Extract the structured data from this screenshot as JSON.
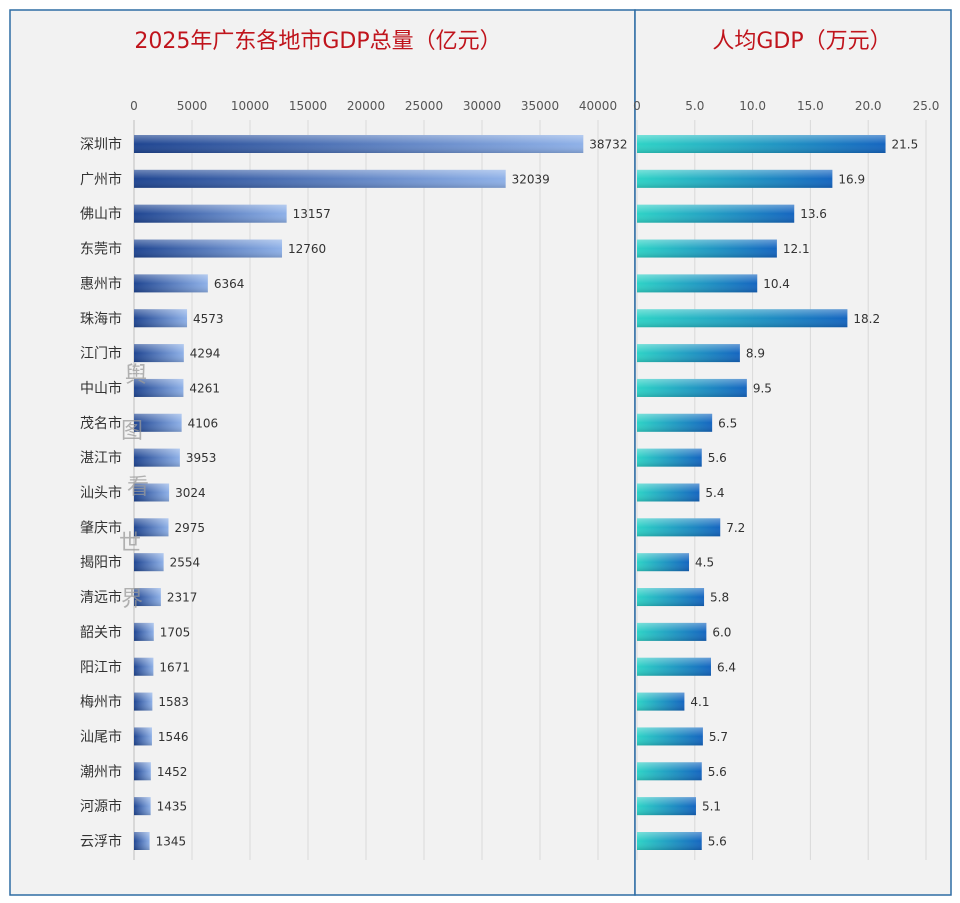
{
  "chart_data": [
    {
      "type": "bar",
      "orientation": "horizontal",
      "title": "2025年广东各地市GDP总量（亿元）",
      "categories": [
        "深圳市",
        "广州市",
        "佛山市",
        "东莞市",
        "惠州市",
        "珠海市",
        "江门市",
        "中山市",
        "茂名市",
        "湛江市",
        "汕头市",
        "肇庆市",
        "揭阳市",
        "清远市",
        "韶关市",
        "阳江市",
        "梅州市",
        "汕尾市",
        "潮州市",
        "河源市",
        "云浮市"
      ],
      "values": [
        38732,
        32039,
        13157,
        12760,
        6364,
        4573,
        4294,
        4261,
        4106,
        3953,
        3024,
        2975,
        2554,
        2317,
        1705,
        1671,
        1583,
        1546,
        1452,
        1435,
        1345
      ],
      "xlim": [
        0,
        40000
      ],
      "ticks": [
        "0",
        "5000",
        "10000",
        "15000",
        "20000",
        "25000",
        "30000",
        "35000",
        "40000"
      ],
      "tick_values": [
        0,
        5000,
        10000,
        15000,
        20000,
        25000,
        30000,
        35000,
        40000
      ],
      "value_labels": [
        "38732",
        "32039",
        "13157",
        "12760",
        "6364",
        "4573",
        "4294",
        "4261",
        "4106",
        "3953",
        "3024",
        "2975",
        "2554",
        "2317",
        "1705",
        "1671",
        "1583",
        "1546",
        "1452",
        "1435",
        "1345"
      ],
      "grid": true,
      "colors": {
        "bar_dark": "#1f4591",
        "bar_light": "#8fb1e8"
      }
    },
    {
      "type": "bar",
      "orientation": "horizontal",
      "title": "人均GDP（万元）",
      "categories": [
        "深圳市",
        "广州市",
        "佛山市",
        "东莞市",
        "惠州市",
        "珠海市",
        "江门市",
        "中山市",
        "茂名市",
        "湛江市",
        "汕头市",
        "肇庆市",
        "揭阳市",
        "清远市",
        "韶关市",
        "阳江市",
        "梅州市",
        "汕尾市",
        "潮州市",
        "河源市",
        "云浮市"
      ],
      "values": [
        21.5,
        16.9,
        13.6,
        12.1,
        10.4,
        18.2,
        8.9,
        9.5,
        6.5,
        5.6,
        5.4,
        7.2,
        4.5,
        5.8,
        6.0,
        6.4,
        4.1,
        5.7,
        5.6,
        5.1,
        5.6
      ],
      "xlim": [
        0,
        25
      ],
      "ticks": [
        "0",
        "5.0",
        "10.0",
        "15.0",
        "20.0",
        "25.0"
      ],
      "tick_values": [
        0,
        5,
        10,
        15,
        20,
        25
      ],
      "value_labels": [
        "21.5",
        "16.9",
        "13.6",
        "12.1",
        "10.4",
        "18.2",
        "8.9",
        "9.5",
        "6.5",
        "5.6",
        "5.4",
        "7.2",
        "4.5",
        "5.8",
        "6.0",
        "6.4",
        "4.1",
        "5.7",
        "5.6",
        "5.1",
        "5.6"
      ],
      "grid": true,
      "colors": {
        "bar_start": "#2ed3c6",
        "bar_end": "#1565c0"
      }
    }
  ],
  "watermark": {
    "chars": [
      "舆",
      "图",
      "看",
      "世",
      "界"
    ]
  },
  "colors": {
    "frame": "#2e6da4",
    "title": "#c0141c",
    "grid": "#d9d9d9",
    "panel_bg": "#f2f2f2"
  }
}
